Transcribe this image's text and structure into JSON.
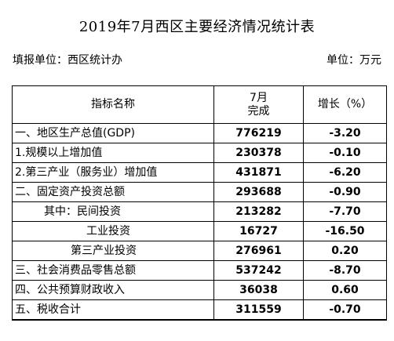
{
  "title": "2019年7月西区主要经济情况统计表",
  "reporting_unit": "填报单位：西区统计办",
  "unit": "单位：万元",
  "table": {
    "headers": {
      "indicator": "指标名称",
      "period_line1": "7月",
      "period_line2": "完成",
      "growth": "增长（%）"
    },
    "rows": [
      {
        "name": "一、地区生产总值(GDP)",
        "value": "776219",
        "growth": "-3.20"
      },
      {
        "name": "1.规模以上增加值",
        "value": "230378",
        "growth": "-0.10"
      },
      {
        "name": "2.第三产业（服务业）增加值",
        "value": "431871",
        "growth": "-6.20"
      },
      {
        "name": "二、固定资产投资总额",
        "value": "293688",
        "growth": "-0.90"
      },
      {
        "name": "其中：民间投资",
        "value": "213282",
        "growth": "-7.70"
      },
      {
        "name": "工业投资",
        "value": "16727",
        "growth": "-16.50"
      },
      {
        "name": "第三产业投资",
        "value": "276961",
        "growth": "0.20"
      },
      {
        "name": "三、社会消费品零售总额",
        "value": "537242",
        "growth": "-8.70"
      },
      {
        "name": "四、公共预算财政收入",
        "value": "36038",
        "growth": "0.60"
      },
      {
        "name": "五、税收合计",
        "value": "311559",
        "growth": "-0.70"
      }
    ]
  }
}
